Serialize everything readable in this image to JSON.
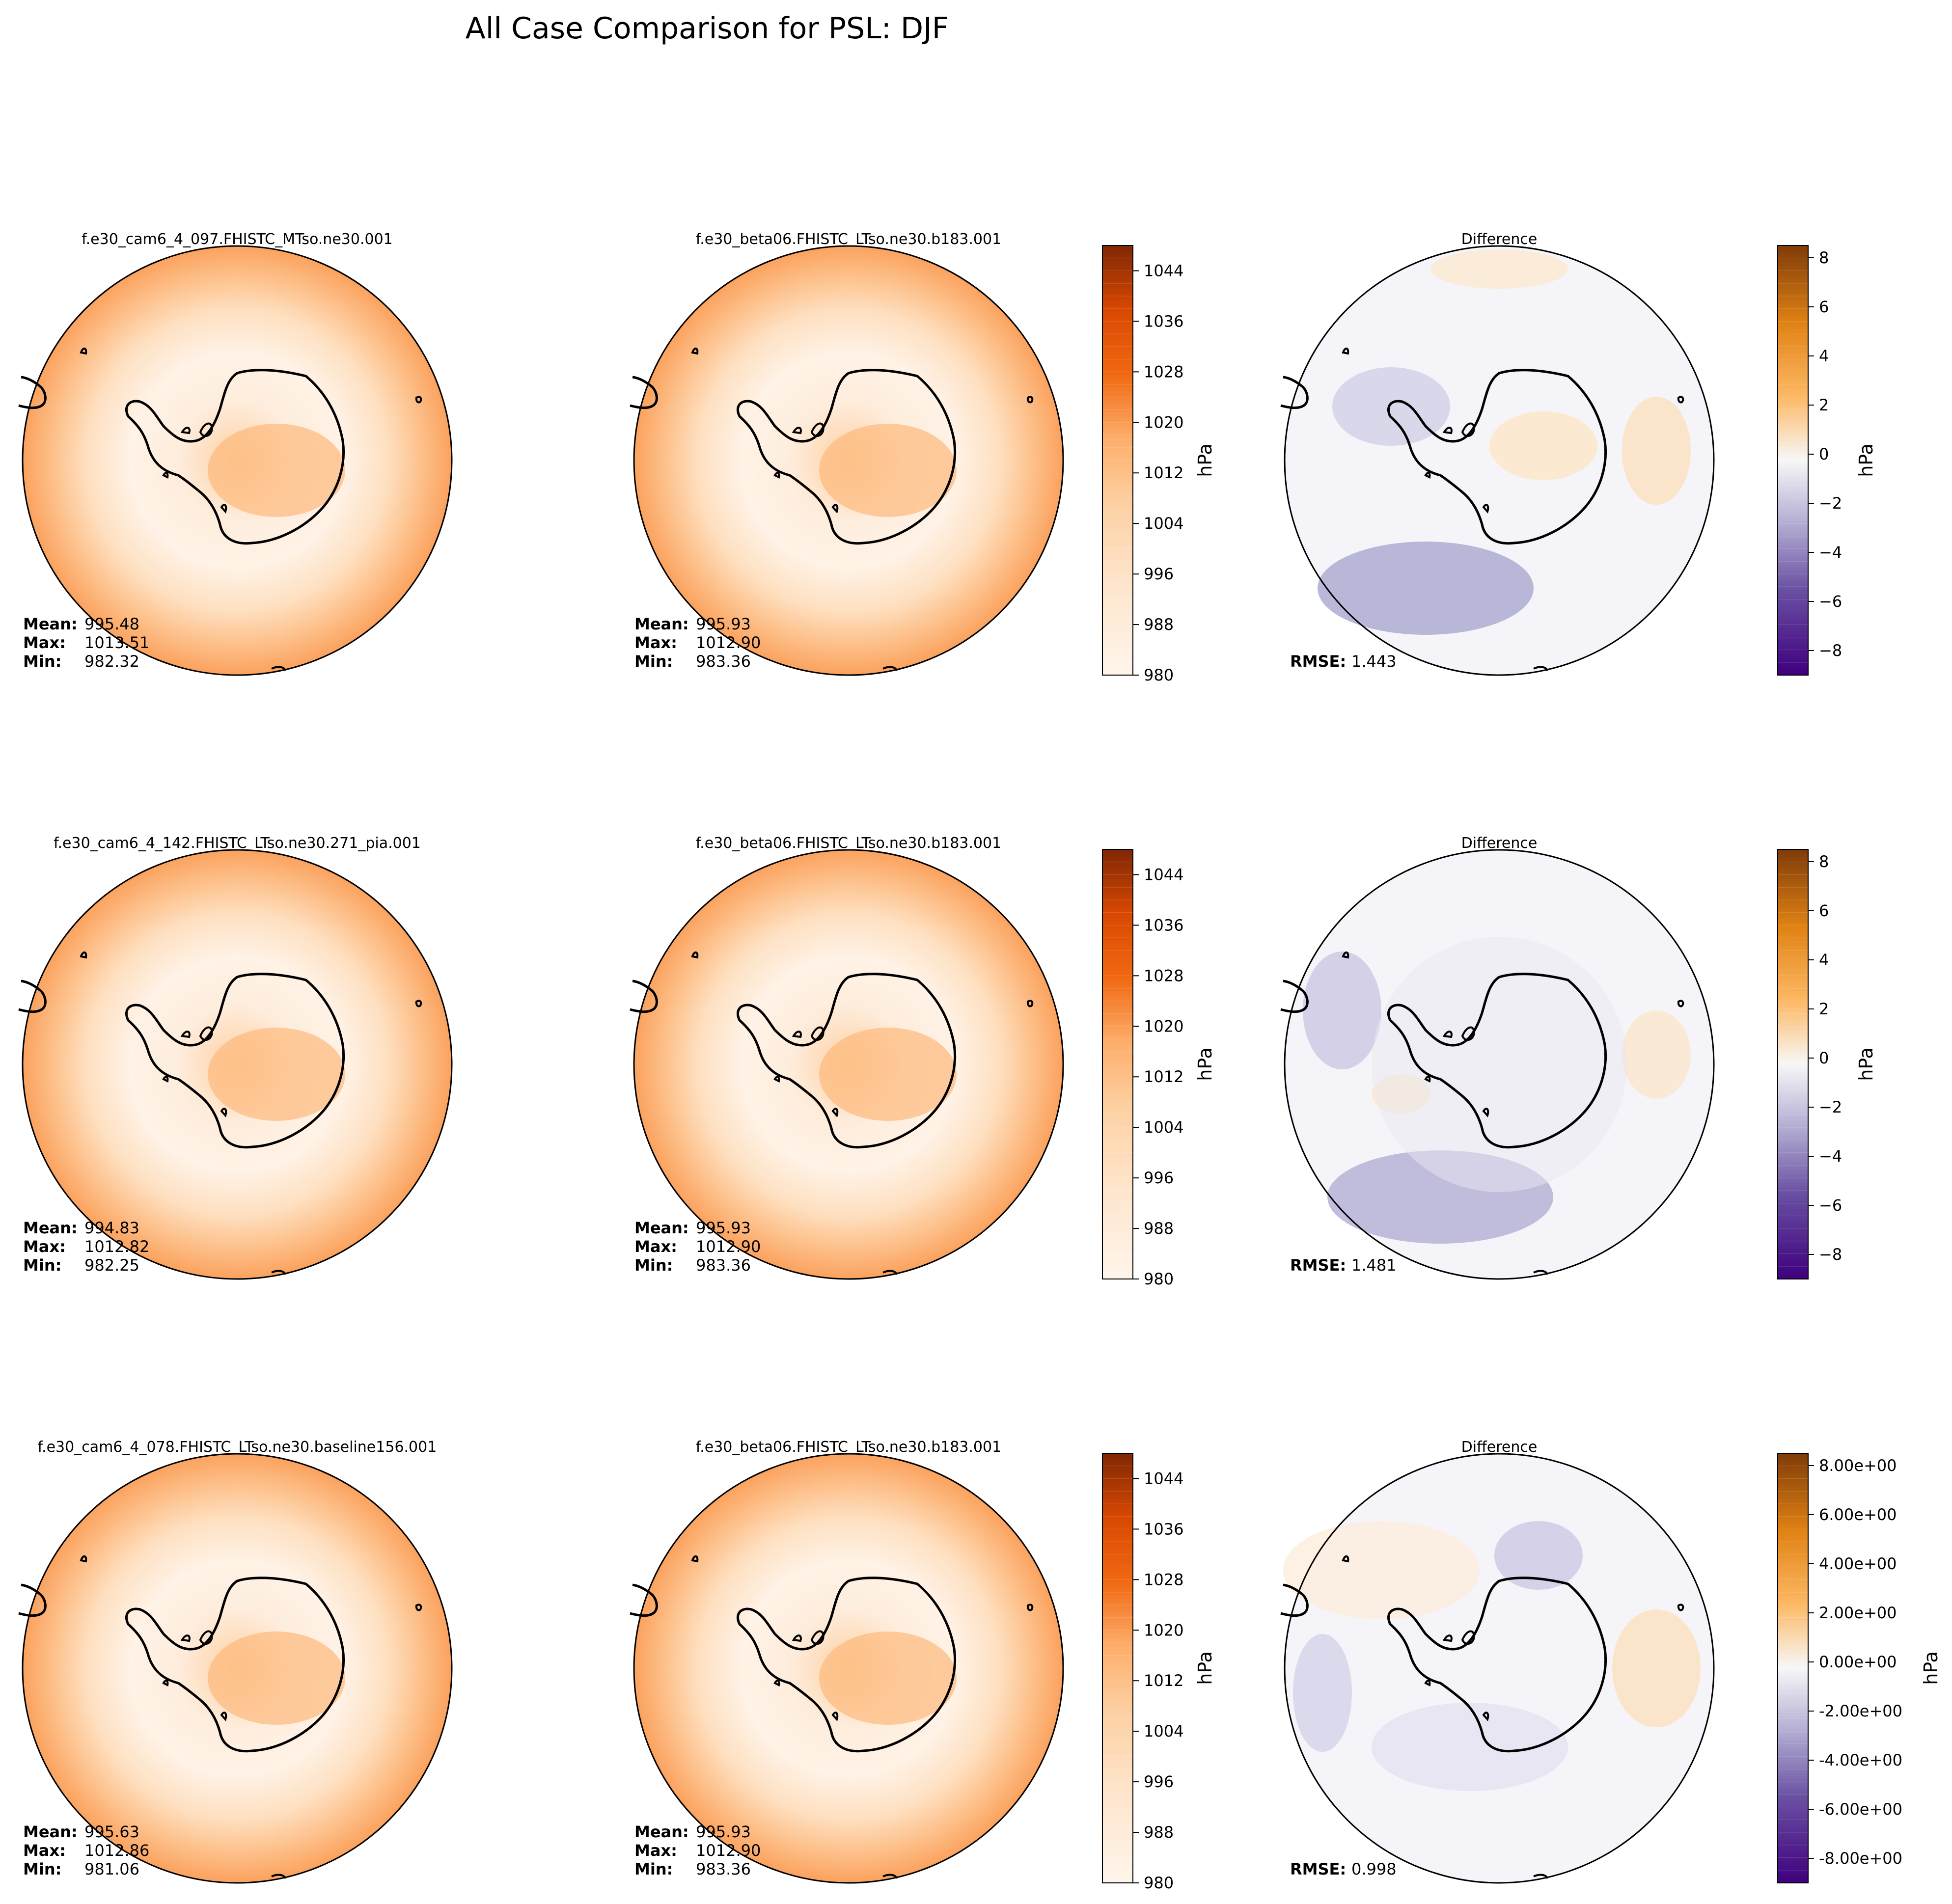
{
  "figure_title": "All Case Comparison for PSL: DJF",
  "chart_data": {
    "type": "polar_contour_map_panels",
    "title": "All Case Comparison for PSL: DJF",
    "variable": "PSL",
    "season": "DJF",
    "units": "hPa",
    "region": "Southern Hemisphere polar stereographic (Antarctica)",
    "colors": {
      "psl_low": "#fff5eb",
      "psl_mid": "#fdae6b",
      "psl_high": "#7f2704",
      "diff_neg": "#3f007d",
      "diff_zero": "#f7f7f7",
      "diff_pos": "#7f3b08",
      "coastline": "#000000"
    },
    "psl_colorbar": {
      "label": "hPa",
      "range": [
        980,
        1048
      ],
      "contour_interval": 4,
      "ticks": [
        "980",
        "988",
        "996",
        "1004",
        "1012",
        "1020",
        "1028",
        "1036",
        "1044"
      ]
    },
    "rows": [
      {
        "test": {
          "case": "f.e30_cam6_4_097.FHISTC_MTso.ne30.001",
          "stats": [
            {
              "label": "Mean:",
              "value": "995.48"
            },
            {
              "label": "Max:",
              "value": "1013.51"
            },
            {
              "label": "Min:",
              "value": "982.32"
            }
          ]
        },
        "baseline": {
          "case": "f.e30_beta06.FHISTC_LTso.ne30.b183.001",
          "stats": [
            {
              "label": "Mean:",
              "value": "995.93"
            },
            {
              "label": "Max:",
              "value": "1012.90"
            },
            {
              "label": "Min:",
              "value": "983.36"
            }
          ]
        },
        "psl_colorbar_label": "hPa",
        "difference": {
          "title": "Difference",
          "rmse_label": "RMSE:",
          "rmse": "1.443",
          "colorbar_label": "hPa",
          "range": [
            -9,
            8.5
          ],
          "ticks": [
            8,
            6,
            4,
            2,
            0,
            -2,
            -4,
            -6,
            -8
          ],
          "tick_labels": [
            "8",
            "6",
            "4",
            "2",
            "0",
            "−2",
            "−4",
            "−6",
            "−8"
          ]
        }
      },
      {
        "test": {
          "case": "f.e30_cam6_4_142.FHISTC_LTso.ne30.271_pia.001",
          "stats": [
            {
              "label": "Mean:",
              "value": "994.83"
            },
            {
              "label": "Max:",
              "value": "1012.82"
            },
            {
              "label": "Min:",
              "value": "982.25"
            }
          ]
        },
        "baseline": {
          "case": "f.e30_beta06.FHISTC_LTso.ne30.b183.001",
          "stats": [
            {
              "label": "Mean:",
              "value": "995.93"
            },
            {
              "label": "Max:",
              "value": "1012.90"
            },
            {
              "label": "Min:",
              "value": "983.36"
            }
          ]
        },
        "psl_colorbar_label": "hPa",
        "difference": {
          "title": "Difference",
          "rmse_label": "RMSE:",
          "rmse": "1.481",
          "colorbar_label": "hPa",
          "range": [
            -9,
            8.5
          ],
          "ticks": [
            8,
            6,
            4,
            2,
            0,
            -2,
            -4,
            -6,
            -8
          ],
          "tick_labels": [
            "8",
            "6",
            "4",
            "2",
            "0",
            "−2",
            "−4",
            "−6",
            "−8"
          ]
        }
      },
      {
        "test": {
          "case": "f.e30_cam6_4_078.FHISTC_LTso.ne30.baseline156.001",
          "stats": [
            {
              "label": "Mean:",
              "value": "995.63"
            },
            {
              "label": "Max:",
              "value": "1012.86"
            },
            {
              "label": "Min:",
              "value": "981.06"
            }
          ]
        },
        "baseline": {
          "case": "f.e30_beta06.FHISTC_LTso.ne30.b183.001",
          "stats": [
            {
              "label": "Mean:",
              "value": "995.93"
            },
            {
              "label": "Max:",
              "value": "1012.90"
            },
            {
              "label": "Min:",
              "value": "983.36"
            }
          ]
        },
        "psl_colorbar_label": "hPa",
        "difference": {
          "title": "Difference",
          "rmse_label": "RMSE:",
          "rmse": "0.998",
          "colorbar_label": "hPa",
          "range": [
            -9,
            8.5
          ],
          "ticks": [
            8,
            6,
            4,
            2,
            0,
            -2,
            -4,
            -6,
            -8
          ],
          "tick_labels": [
            "8.00e+00",
            "6.00e+00",
            "4.00e+00",
            "2.00e+00",
            "0.00e+00",
            "-2.00e+00",
            "-4.00e+00",
            "-6.00e+00",
            "-8.00e+00"
          ]
        }
      }
    ]
  }
}
